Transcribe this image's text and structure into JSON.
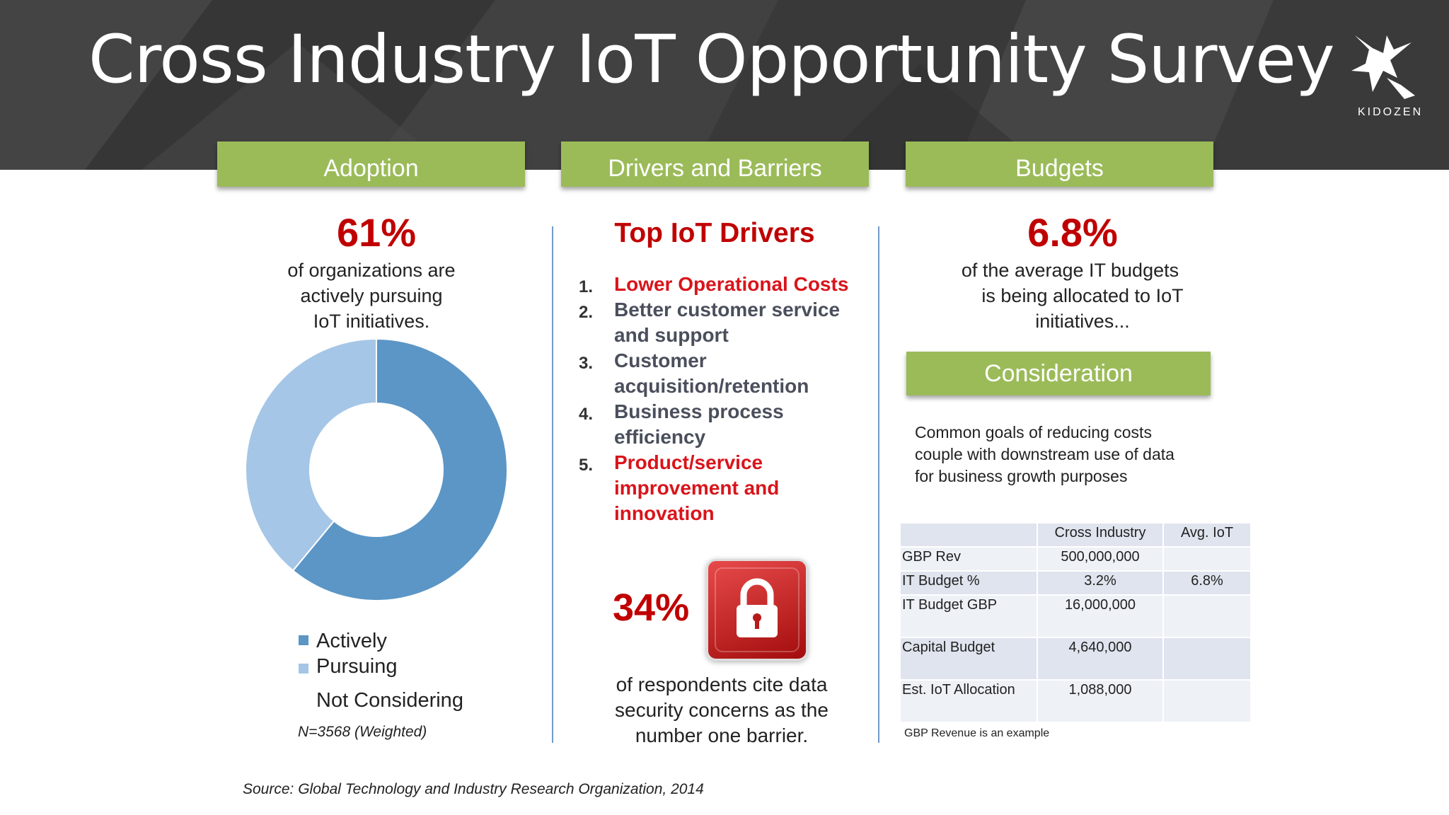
{
  "header": {
    "title": "Cross Industry IoT Opportunity Survey",
    "logo_text": "KIDOZEN"
  },
  "tabs": [
    {
      "label": "Adoption"
    },
    {
      "label": "Drivers and Barriers"
    },
    {
      "label": "Budgets"
    }
  ],
  "adoption": {
    "stat": "61%",
    "description": [
      "of organizations are",
      "actively pursuing",
      "IoT initiatives."
    ],
    "legend": [
      {
        "label": "Actively",
        "color": "#5b96c6"
      },
      {
        "label": "Pursuing",
        "color": "#a5c6e6"
      },
      {
        "label": "Not Considering"
      }
    ],
    "note": "N=3568 (Weighted)"
  },
  "chart_data": {
    "type": "pie",
    "donut": true,
    "categories": [
      "Actively Pursuing",
      "Not Considering"
    ],
    "values": [
      61,
      39
    ],
    "colors": [
      "#5b96c6",
      "#a5c6e6"
    ]
  },
  "drivers": {
    "title": "Top IoT Drivers",
    "items": [
      {
        "num": "1.",
        "lines": [
          "Lower Operational Costs"
        ],
        "color": "#d9141b"
      },
      {
        "num": "2.",
        "lines": [
          "Better customer service",
          "and support"
        ],
        "color": "#4a4f5c"
      },
      {
        "num": "3.",
        "lines": [
          "Customer",
          "acquisition/retention"
        ],
        "color": "#4a4f5c"
      },
      {
        "num": "4.",
        "lines": [
          "Business process",
          "efficiency"
        ],
        "color": "#4a4f5c"
      },
      {
        "num": "5.",
        "lines": [
          "Product/service",
          "improvement and",
          "innovation"
        ],
        "color": "#d9141b"
      }
    ],
    "barrier_stat": "34%",
    "barrier_description": [
      "of respondents cite data",
      "security concerns as the",
      "number one barrier."
    ]
  },
  "budgets": {
    "stat": "6.8%",
    "description": [
      "of the average IT budgets",
      "is being allocated to IoT",
      "initiatives..."
    ],
    "consideration_title": "Consideration",
    "consideration_text": [
      "Common goals of reducing costs",
      "couple with downstream use of data",
      "for business growth purposes"
    ],
    "table": {
      "headers": [
        "",
        "Cross Industry",
        "Avg. IoT"
      ],
      "rows": [
        [
          "GBP Rev",
          "500,000,000",
          ""
        ],
        [
          "IT Budget %",
          "3.2%",
          "6.8%"
        ],
        [
          "IT Budget GBP",
          "16,000,000",
          ""
        ],
        [
          "Capital Budget",
          "4,640,000",
          ""
        ],
        [
          "Est. IoT Allocation",
          "1,088,000",
          ""
        ]
      ]
    },
    "footnote": "GBP Revenue is an example"
  },
  "source": "Source: Global Technology and Industry Research Organization, 2014"
}
